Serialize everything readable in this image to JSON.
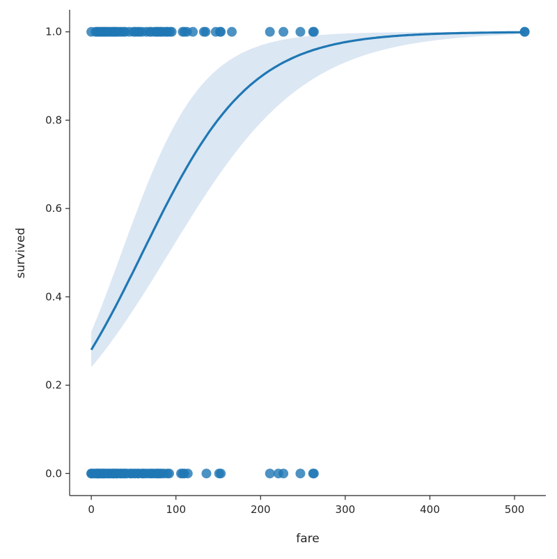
{
  "chart_data": {
    "type": "scatter",
    "subtype": "logistic regression with confidence band",
    "xlabel": "fare",
    "ylabel": "survived",
    "xlim": [
      -25.6,
      537
    ],
    "ylim": [
      -0.05,
      1.05
    ],
    "xticks": [
      0,
      100,
      200,
      300,
      400,
      500
    ],
    "yticks": [
      0.0,
      0.2,
      0.4,
      0.6,
      0.8,
      1.0
    ],
    "ytick_labels": [
      "0.0",
      "0.2",
      "0.4",
      "0.6",
      "0.8",
      "1.0"
    ],
    "grid": false,
    "color": "#1f77b4",
    "band_color": "#dbe7f3",
    "points_survived_1": [
      0,
      5,
      7,
      8,
      10,
      12,
      13,
      15,
      16,
      18,
      20,
      22,
      24,
      26,
      27,
      29,
      30,
      33,
      35,
      38,
      40,
      45,
      50,
      52,
      55,
      57,
      60,
      65,
      69,
      71,
      75,
      77,
      78,
      80,
      82,
      83,
      86,
      89,
      90,
      93,
      95,
      108,
      110,
      113,
      120,
      133,
      135,
      147,
      152,
      153,
      166,
      211,
      227,
      247,
      262,
      263,
      512,
      512
    ],
    "points_survived_0": [
      0,
      0,
      2,
      4,
      6,
      7,
      7.5,
      8,
      9,
      10,
      12,
      13,
      14,
      15,
      16,
      18,
      20,
      21,
      23,
      25,
      26,
      27,
      29,
      30,
      31,
      34,
      35,
      37,
      39,
      40,
      42,
      46,
      47,
      50,
      52,
      55,
      56,
      60,
      61,
      63,
      66,
      69,
      71,
      73,
      76,
      78,
      79,
      81,
      83,
      86,
      90,
      92,
      106,
      108,
      110,
      114,
      136,
      151,
      153,
      211,
      221,
      227,
      247,
      262,
      263
    ],
    "fit_curve": {
      "intercept": -0.944,
      "slope": 0.0156,
      "x_range": [
        0,
        512
      ]
    },
    "ci_lower": {
      "intercept": -1.15,
      "slope": 0.0125
    },
    "ci_upper": {
      "intercept": -0.75,
      "slope": 0.021
    }
  }
}
